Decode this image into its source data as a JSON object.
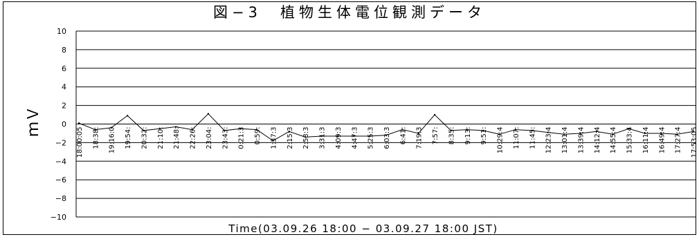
{
  "chart_data": {
    "type": "line",
    "title": "図−3　植物生体電位観測データ",
    "xlabel": "Time(03.09.26 18:00 − 03.09.27 18:00 JST)",
    "ylabel": "ｍＶ",
    "ylim": [
      -10,
      10
    ],
    "yticks": [
      "10",
      "8",
      "6",
      "4",
      "2",
      "0",
      "−2",
      "−4",
      "−6",
      "−8",
      "−10"
    ],
    "grid": true,
    "legend": "none",
    "categories": [
      "18:00:05",
      "18:38:",
      "19:16:0",
      "19:54:",
      "20:32:",
      "21:10:",
      "21:48:",
      "22:26:",
      "23:04:",
      "23:43:",
      "0:21:3",
      "0:59:",
      "1:37:3",
      "2:15:3",
      "2:53:3",
      "3:31:3",
      "4:09:3",
      "4:47:3",
      "5:25:3",
      "6:03:3",
      "6:41:",
      "7:19:3",
      "7:57:",
      "8:35:",
      "9:13:",
      "9:51:",
      "10:29:4",
      "11:07:",
      "11:45:",
      "12:23:4",
      "13:01:4",
      "13:39:4",
      "14:12:4",
      "14:55:4",
      "15:33:4",
      "16:11:4",
      "16:49:4",
      "17:27:4",
      "17:53:05"
    ],
    "series": [
      {
        "values": [
          0.1,
          -0.6,
          -0.4,
          0.9,
          -0.7,
          -0.5,
          -0.3,
          -0.6,
          1.1,
          -0.7,
          -0.5,
          -0.6,
          -1.8,
          -0.8,
          -1.4,
          -1.3,
          -1.3,
          -1.3,
          -1.3,
          -1.2,
          -0.6,
          -1.0,
          1.0,
          -0.7,
          -0.6,
          -0.7,
          -1.1,
          -0.6,
          -0.7,
          -0.9,
          -1.1,
          -1.0,
          -0.8,
          -1.1,
          -0.5,
          -1.0,
          -1.0,
          -1.1,
          -0.8
        ],
        "color": "#000000"
      }
    ]
  }
}
